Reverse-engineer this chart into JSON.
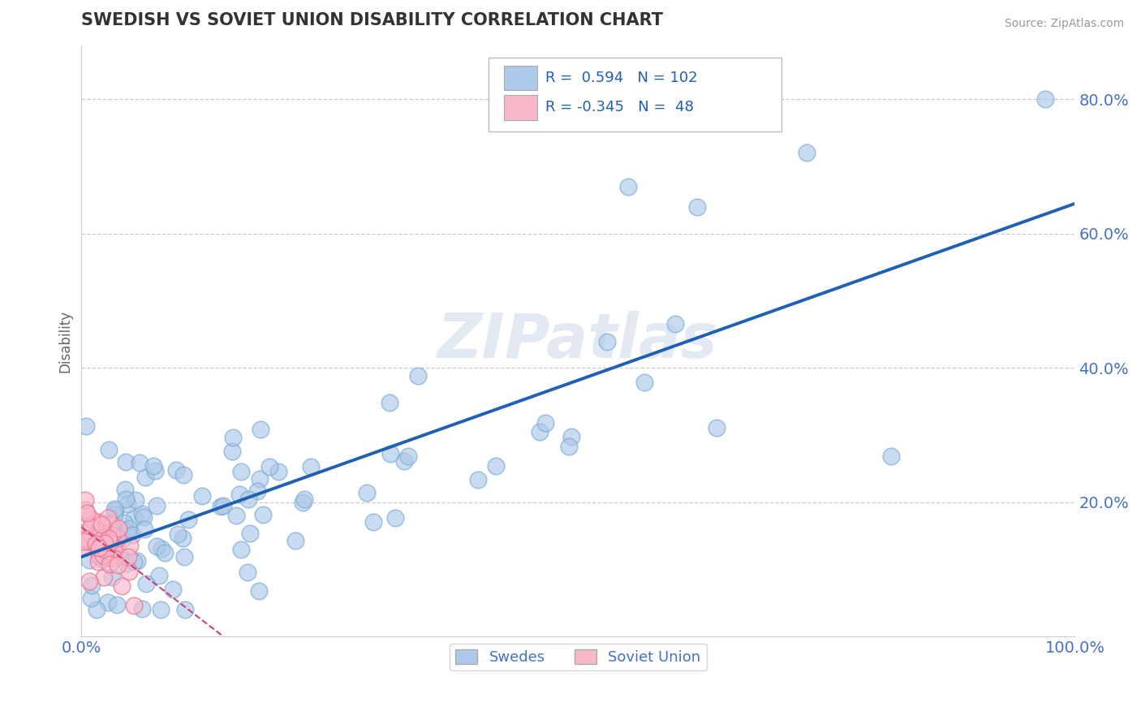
{
  "title": "SWEDISH VS SOVIET UNION DISABILITY CORRELATION CHART",
  "source": "Source: ZipAtlas.com",
  "ylabel": "Disability",
  "ytick_labels": [
    "20.0%",
    "40.0%",
    "60.0%",
    "80.0%"
  ],
  "ytick_values": [
    0.2,
    0.4,
    0.6,
    0.8
  ],
  "xlim": [
    0.0,
    1.0
  ],
  "ylim": [
    0.0,
    0.88
  ],
  "blue_R": 0.594,
  "blue_N": 102,
  "pink_R": -0.345,
  "pink_N": 48,
  "blue_color": "#adc8e8",
  "blue_edge_color": "#7aabd4",
  "blue_line_color": "#2060b0",
  "pink_color": "#f9b8ca",
  "pink_edge_color": "#e87090",
  "pink_line_color": "#d04070",
  "watermark": "ZIPatlas",
  "legend_label_blue": "Swedes",
  "legend_label_pink": "Soviet Union",
  "background_color": "#ffffff",
  "grid_color": "#cccccc",
  "title_color": "#333333",
  "axis_label_color": "#4472c4",
  "legend_text_color": "#2060b0"
}
